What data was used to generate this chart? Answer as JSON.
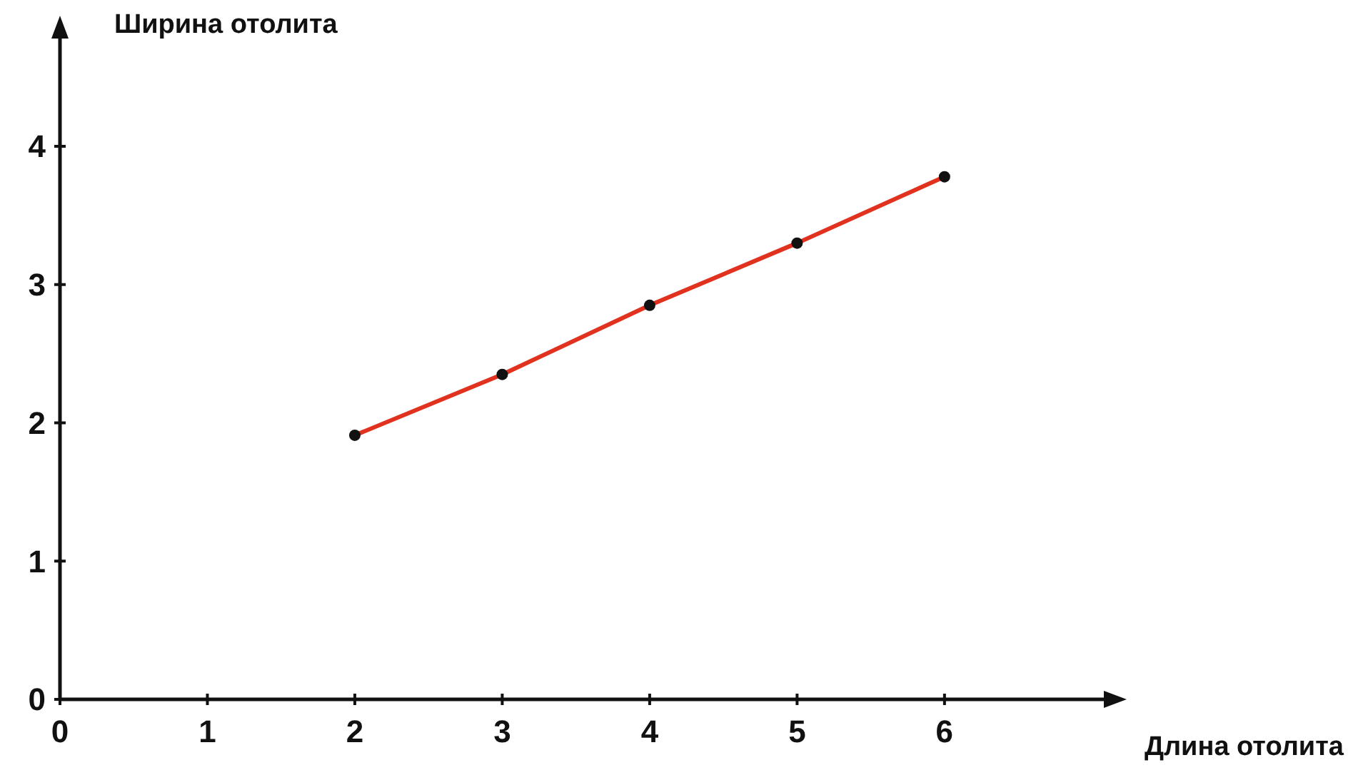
{
  "chart_data": {
    "type": "line",
    "xlabel": "Длина отолита",
    "ylabel": "Ширина отолита",
    "x": [
      2,
      3,
      4,
      5,
      6
    ],
    "series": [
      {
        "color": "#e0321e",
        "values": [
          1.91,
          2.35,
          2.85,
          3.3,
          3.78
        ]
      }
    ],
    "xlim": [
      0,
      7.1
    ],
    "xticks": [
      0,
      1,
      2,
      3,
      4,
      5,
      6
    ],
    "ylim": [
      0,
      4.8
    ],
    "yticks": [
      0,
      1,
      2,
      3,
      4
    ],
    "marker": "circle",
    "line_style": "solid",
    "grid": false
  }
}
